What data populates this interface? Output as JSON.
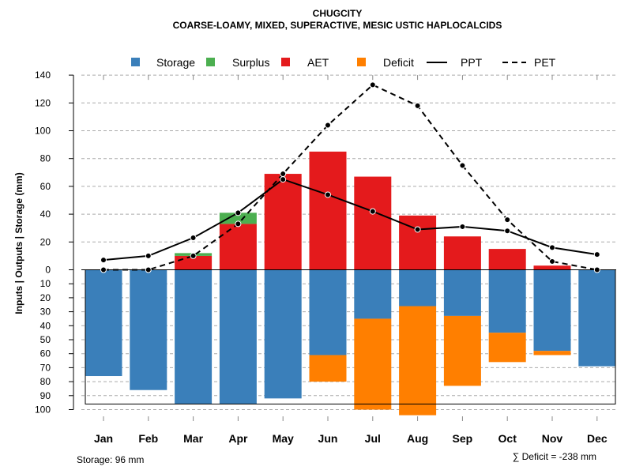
{
  "chart_data": {
    "type": "bar",
    "title": "CHUGCITY",
    "subtitle": "COARSE-LOAMY, MIXED, SUPERACTIVE, MESIC USTIC HAPLOCALCIDS",
    "ylabel": "Inputs | Outputs | Storage    (mm)",
    "categories": [
      "Jan",
      "Feb",
      "Mar",
      "Apr",
      "May",
      "Jun",
      "Jul",
      "Aug",
      "Sep",
      "Oct",
      "Nov",
      "Dec"
    ],
    "ylim_top": [
      0,
      140
    ],
    "ylim_bottom": [
      0,
      100
    ],
    "yticks_top": [
      0,
      20,
      40,
      60,
      80,
      100,
      120,
      140
    ],
    "yticks_bottom": [
      10,
      20,
      30,
      40,
      50,
      60,
      70,
      80,
      90,
      100
    ],
    "legend": [
      "Storage",
      "Surplus",
      "AET",
      "Deficit",
      "PPT",
      "PET"
    ],
    "series": [
      {
        "name": "AET",
        "values": [
          0,
          0,
          10,
          33,
          69,
          85,
          67,
          39,
          24,
          15,
          3,
          0
        ]
      },
      {
        "name": "Surplus",
        "values": [
          0,
          0,
          2,
          8,
          0,
          0,
          0,
          0,
          0,
          0,
          0,
          0
        ]
      },
      {
        "name": "Storage",
        "values": [
          76,
          86,
          96,
          96,
          92,
          61,
          35,
          26,
          33,
          45,
          58,
          69
        ]
      },
      {
        "name": "Deficit",
        "values": [
          0,
          0,
          0,
          0,
          0,
          19,
          65,
          78,
          50,
          21,
          3,
          0
        ]
      },
      {
        "name": "PPT",
        "values": [
          7,
          10,
          23,
          41,
          65,
          54,
          42,
          29,
          31,
          28,
          16,
          11
        ]
      },
      {
        "name": "PET",
        "values": [
          0,
          0,
          10,
          33,
          69,
          104,
          133,
          118,
          75,
          36,
          6,
          0
        ]
      }
    ],
    "storage_capacity": 96,
    "footer_left": "Storage: 96 mm",
    "footer_right": "∑ Deficit = -238 mm"
  },
  "colors": {
    "storage": "#3a7fba",
    "surplus": "#4caf50",
    "aet": "#e41a1c",
    "deficit": "#ff7f00"
  }
}
